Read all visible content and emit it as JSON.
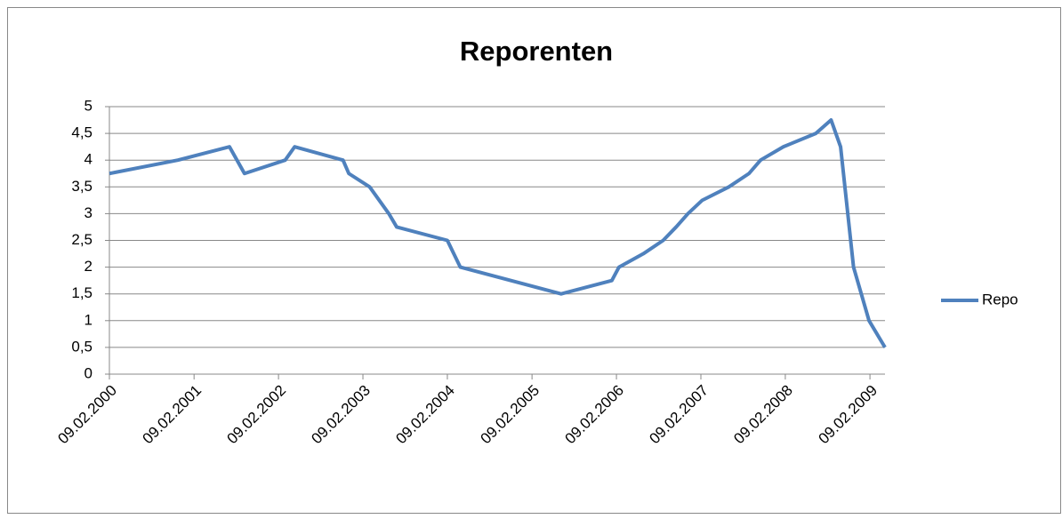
{
  "chart_data": {
    "type": "line",
    "title": "Reporenten",
    "x": [
      "2000-02-09",
      "2000-12-01",
      "2001-07-12",
      "2001-09-15",
      "2002-03-10",
      "2002-04-20",
      "2002-11-15",
      "2002-12-10",
      "2003-03-10",
      "2003-06-01",
      "2003-07-05",
      "2004-02-09",
      "2004-04-05",
      "2005-06-15",
      "2006-01-20",
      "2006-02-20",
      "2006-06-05",
      "2006-08-30",
      "2006-10-25",
      "2006-12-15",
      "2007-02-15",
      "2007-06-10",
      "2007-09-05",
      "2007-10-25",
      "2008-02-01",
      "2008-06-20",
      "2008-08-25",
      "2008-10-05",
      "2008-11-30",
      "2009-02-05",
      "2009-04-15"
    ],
    "series": [
      {
        "name": "Repo",
        "color": "#4f81bd",
        "values": [
          3.75,
          4.0,
          4.25,
          3.75,
          4.0,
          4.25,
          4.0,
          3.75,
          3.5,
          3.0,
          2.75,
          2.5,
          2.0,
          1.5,
          1.75,
          2.0,
          2.25,
          2.5,
          2.75,
          3.0,
          3.25,
          3.5,
          3.75,
          4.0,
          4.25,
          4.5,
          4.75,
          4.25,
          2.0,
          1.0,
          0.5
        ]
      }
    ],
    "xlim": [
      "2000-02-09",
      "2009-04-15"
    ],
    "xticks": [
      {
        "value": "2000-02-09",
        "label": "09.02.2000"
      },
      {
        "value": "2001-02-09",
        "label": "09.02.2001"
      },
      {
        "value": "2002-02-09",
        "label": "09.02.2002"
      },
      {
        "value": "2003-02-09",
        "label": "09.02.2003"
      },
      {
        "value": "2004-02-09",
        "label": "09.02.2004"
      },
      {
        "value": "2005-02-09",
        "label": "09.02.2005"
      },
      {
        "value": "2006-02-09",
        "label": "09.02.2006"
      },
      {
        "value": "2007-02-09",
        "label": "09.02.2007"
      },
      {
        "value": "2008-02-09",
        "label": "09.02.2008"
      },
      {
        "value": "2009-02-09",
        "label": "09.02.2009"
      }
    ],
    "ylim": [
      0,
      5
    ],
    "yticks": [
      0,
      {
        "value": 0.5,
        "label": "0,5"
      },
      1,
      {
        "value": 1.5,
        "label": "1,5"
      },
      2,
      {
        "value": 2.5,
        "label": "2,5"
      },
      3,
      {
        "value": 3.5,
        "label": "3,5"
      },
      4,
      {
        "value": 4.5,
        "label": "4,5"
      },
      5
    ],
    "grid": true,
    "legend": "right"
  }
}
